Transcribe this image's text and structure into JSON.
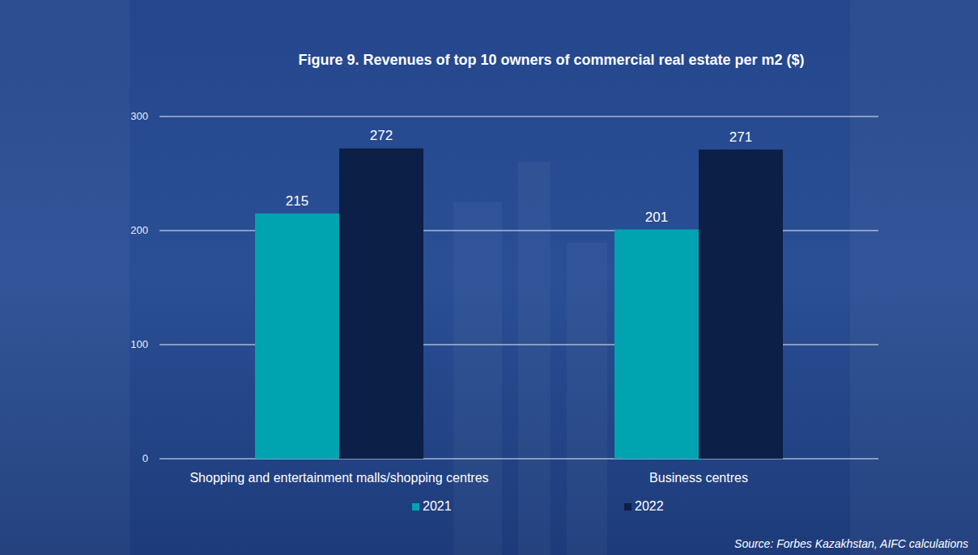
{
  "chart_data": {
    "type": "bar",
    "title": "Figure 9. Revenues of top 10 owners of commercial real estate per m2 ($)",
    "categories": [
      "Shopping and entertainment malls/shopping centres",
      "Business centres"
    ],
    "series": [
      {
        "name": "2021",
        "color": "#00a4b0",
        "values": [
          215,
          201
        ]
      },
      {
        "name": "2022",
        "color": "#0c1f46",
        "values": [
          272,
          271
        ]
      }
    ],
    "ylim": [
      0,
      300
    ],
    "yticks": [
      0,
      100,
      200,
      300
    ],
    "grid": true,
    "data_labels": true,
    "legend": "bottom",
    "source": "Source: Forbes Kazakhstan, AIFC calculations"
  }
}
